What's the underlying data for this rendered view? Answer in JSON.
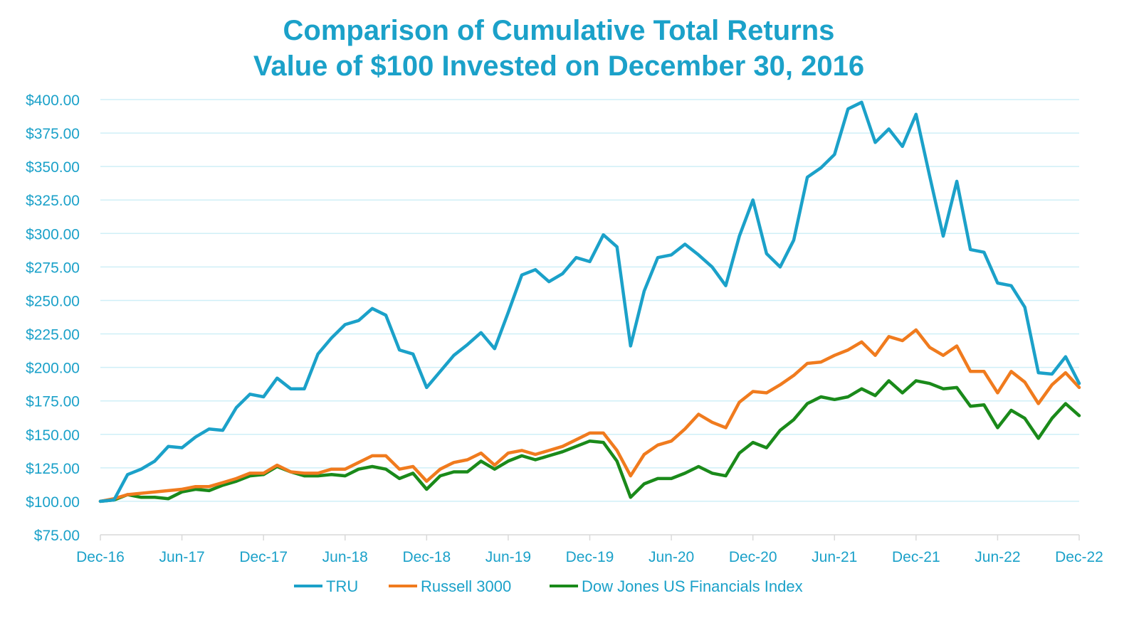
{
  "chart_data": {
    "type": "line",
    "title": "Comparison of Cumulative Total Returns",
    "subtitle": "Value of $100 Invested on December 30, 2016",
    "xlabel": "",
    "ylabel": "",
    "ylim": [
      75,
      400
    ],
    "y_ticks": [
      "$75.00",
      "$100.00",
      "$125.00",
      "$150.00",
      "$175.00",
      "$200.00",
      "$225.00",
      "$250.00",
      "$275.00",
      "$300.00",
      "$325.00",
      "$350.00",
      "$375.00",
      "$400.00"
    ],
    "y_tick_values": [
      75,
      100,
      125,
      150,
      175,
      200,
      225,
      250,
      275,
      300,
      325,
      350,
      375,
      400
    ],
    "x_ticks": [
      "Dec-16",
      "Jun-17",
      "Dec-17",
      "Jun-18",
      "Dec-18",
      "Jun-19",
      "Dec-19",
      "Jun-20",
      "Dec-20",
      "Jun-21",
      "Dec-21",
      "Jun-22",
      "Dec-22"
    ],
    "x_tick_months": [
      0,
      6,
      12,
      18,
      24,
      30,
      36,
      42,
      48,
      54,
      60,
      66,
      72
    ],
    "x_months": [
      0,
      1,
      2,
      3,
      4,
      5,
      6,
      7,
      8,
      9,
      10,
      11,
      12,
      13,
      14,
      15,
      16,
      17,
      18,
      19,
      20,
      21,
      22,
      23,
      24,
      25,
      26,
      27,
      28,
      29,
      30,
      31,
      32,
      33,
      34,
      35,
      36,
      37,
      38,
      39,
      40,
      41,
      42,
      43,
      44,
      45,
      46,
      47,
      48,
      49,
      50,
      51,
      52,
      53,
      54,
      55,
      56,
      57,
      58,
      59,
      60,
      61,
      62,
      63,
      64,
      65,
      66,
      67,
      68,
      69,
      70,
      71,
      72
    ],
    "grid": true,
    "legend_position": "bottom",
    "series": [
      {
        "name": "TRU",
        "color": "#1BA1C9",
        "values": [
          100,
          101,
          120,
          124,
          130,
          141,
          140,
          148,
          154,
          153,
          170,
          180,
          178,
          192,
          184,
          184,
          210,
          222,
          232,
          235,
          244,
          239,
          213,
          210,
          185,
          197,
          209,
          217,
          226,
          214,
          241,
          269,
          273,
          264,
          270,
          282,
          279,
          299,
          290,
          216,
          257,
          282,
          284,
          292,
          284,
          275,
          261,
          298,
          325,
          285,
          275,
          295,
          342,
          349,
          359,
          393,
          398,
          368,
          378,
          365,
          389,
          343,
          298,
          339,
          288,
          286,
          263,
          261,
          245,
          196,
          195,
          208,
          188
        ]
      },
      {
        "name": "Russell 3000",
        "color": "#F07B1E",
        "values": [
          100,
          102,
          105,
          106,
          107,
          108,
          109,
          111,
          111,
          114,
          117,
          121,
          121,
          127,
          122,
          121,
          121,
          124,
          124,
          129,
          134,
          134,
          124,
          126,
          115,
          124,
          129,
          131,
          136,
          127,
          136,
          138,
          135,
          138,
          141,
          146,
          151,
          151,
          138,
          119,
          135,
          142,
          145,
          154,
          165,
          159,
          155,
          174,
          182,
          181,
          187,
          194,
          203,
          204,
          209,
          213,
          219,
          209,
          223,
          220,
          228,
          215,
          209,
          216,
          197,
          197,
          181,
          197,
          189,
          173,
          187,
          196,
          185
        ]
      },
      {
        "name": "Dow Jones US Financials Index",
        "color": "#1A8A1A",
        "values": [
          100,
          101,
          105,
          103,
          103,
          102,
          107,
          109,
          108,
          112,
          115,
          119,
          120,
          126,
          122,
          119,
          119,
          120,
          119,
          124,
          126,
          124,
          117,
          121,
          109,
          119,
          122,
          122,
          130,
          124,
          130,
          134,
          131,
          134,
          137,
          141,
          145,
          144,
          130,
          103,
          113,
          117,
          117,
          121,
          126,
          121,
          119,
          136,
          144,
          140,
          153,
          161,
          173,
          178,
          176,
          178,
          184,
          179,
          190,
          181,
          190,
          188,
          184,
          185,
          171,
          172,
          155,
          168,
          162,
          147,
          162,
          173,
          164
        ]
      }
    ]
  }
}
